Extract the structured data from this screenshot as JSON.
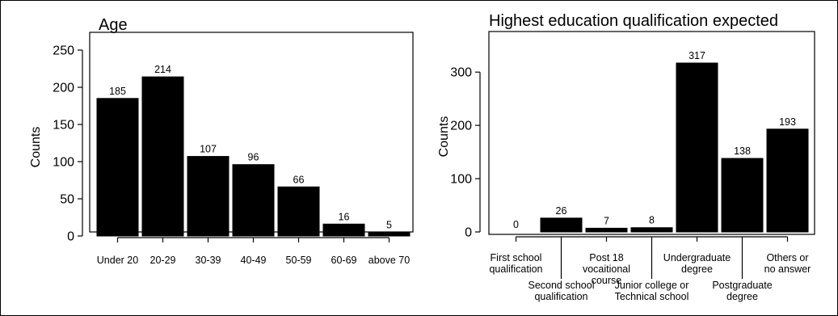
{
  "chart_data": [
    {
      "type": "bar",
      "title": "Age",
      "xlabel": "",
      "ylabel": "Counts",
      "categories": [
        "Under 20",
        "20-29",
        "30-39",
        "40-49",
        "50-59",
        "60-69",
        "above 70"
      ],
      "values": [
        185,
        214,
        107,
        96,
        66,
        16,
        5
      ],
      "data_labels": [
        "185",
        "214",
        "107",
        "96",
        "66",
        "16",
        "5"
      ],
      "yticks": [
        0,
        50,
        100,
        150,
        200,
        250
      ],
      "ylim": [
        0,
        250
      ],
      "bar_color": "#000000",
      "grid": false,
      "legend": "none"
    },
    {
      "type": "bar",
      "title": "Highest education qualification expected",
      "xlabel": "",
      "ylabel": "Counts",
      "categories": [
        "First school qualification",
        "Second school qualification",
        "Post 18 vocaitional course",
        "Junior college or Technical school",
        "Undergraduate degree",
        "Postgraduate degree",
        "Others or no answer"
      ],
      "values": [
        0,
        26,
        7,
        8,
        317,
        138,
        193
      ],
      "data_labels": [
        "0",
        "26",
        "7",
        "8",
        "317",
        "138",
        "193"
      ],
      "yticks": [
        0,
        100,
        200,
        300
      ],
      "ylim": [
        0,
        330
      ],
      "bar_color": "#000000",
      "grid": false,
      "legend": "none"
    }
  ]
}
